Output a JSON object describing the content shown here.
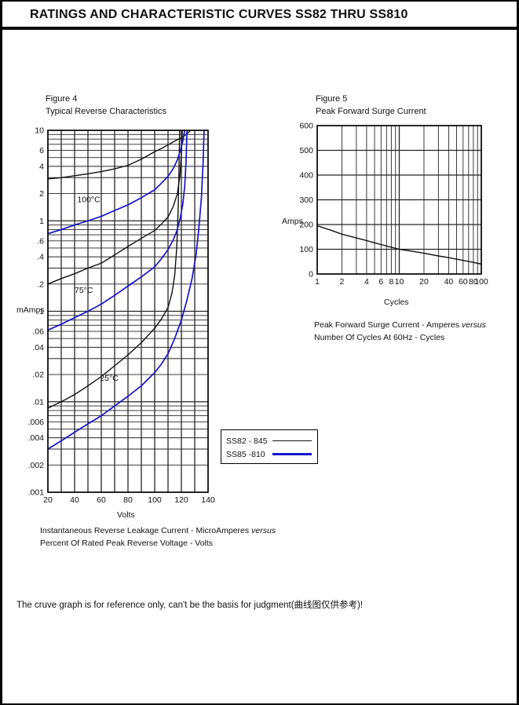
{
  "page": {
    "title": "RATINGS AND CHARACTERISTIC CURVES SS82 THRU SS810",
    "note": "The cruve graph is for reference only, can't be the basis for judgment(曲线图仅供参考)!"
  },
  "colors": {
    "series_black": "#111111",
    "series_blue": "#1414cc",
    "grid": "#262626",
    "frame": "#000000"
  },
  "figure4": {
    "label": "Figure 4",
    "title": "Typical Reverse Characteristics",
    "y_unit": "mAmps",
    "x_unit": "Volts",
    "caption1": "Instantaneous Reverse Leakage Current  - MicroAmperes",
    "caption1_italic": "versus",
    "caption2": "Percent Of Rated Peak Reverse Voltage - Volts",
    "legend": [
      {
        "label": "SS82 - 845",
        "color": "#111111"
      },
      {
        "label": "SS85 -810",
        "color": "#1414cc"
      }
    ]
  },
  "figure5": {
    "label": "Figure 5",
    "title": "Peak Forward Surge Current",
    "y_unit": "Amps",
    "x_unit": "Cycles",
    "caption1": "Peak Forward Surge Current - Amperes",
    "caption1_italic": "versus",
    "caption2": "Number Of Cycles At 60Hz - Cycles"
  },
  "chart_data": [
    {
      "figure": "Figure 4",
      "type": "line",
      "title": "Typical Reverse Characteristics",
      "xlabel": "Volts",
      "ylabel": "mAmps",
      "x_scale": "linear",
      "y_scale": "log",
      "xlim": [
        20,
        140
      ],
      "ylim": [
        0.001,
        10
      ],
      "x_grid_step": 10,
      "grid": true,
      "legend_position": "below-right",
      "x_ticks": [
        {
          "v": 20,
          "label": "20"
        },
        {
          "v": 40,
          "label": "40"
        },
        {
          "v": 60,
          "label": "60"
        },
        {
          "v": 80,
          "label": "80"
        },
        {
          "v": 100,
          "label": "100"
        },
        {
          "v": 120,
          "label": "120"
        },
        {
          "v": 140,
          "label": "140"
        }
      ],
      "y_ticks": [
        {
          "v": 10,
          "label": "10"
        },
        {
          "v": 6,
          "label": "6"
        },
        {
          "v": 4,
          "label": "4"
        },
        {
          "v": 2,
          "label": "2"
        },
        {
          "v": 1,
          "label": "1"
        },
        {
          "v": 0.6,
          "label": ".6"
        },
        {
          "v": 0.4,
          "label": ".4"
        },
        {
          "v": 0.2,
          "label": ".2"
        },
        {
          "v": 0.1,
          "label": ".1"
        },
        {
          "v": 0.06,
          "label": ".06"
        },
        {
          "v": 0.04,
          "label": ".04"
        },
        {
          "v": 0.02,
          "label": ".02"
        },
        {
          "v": 0.01,
          "label": ".01"
        },
        {
          "v": 0.006,
          "label": ".006"
        },
        {
          "v": 0.004,
          "label": ".004"
        },
        {
          "v": 0.002,
          "label": ".002"
        },
        {
          "v": 0.001,
          "label": ".001"
        }
      ],
      "annotations": [
        {
          "text": "100°C",
          "x": 42,
          "y": 1.6
        },
        {
          "text": "75°C",
          "x": 40,
          "y": 0.16
        },
        {
          "text": "25°C",
          "x": 59,
          "y": 0.017
        }
      ],
      "series": [
        {
          "name": "SS82 - 845 @ 100°C",
          "color": "#111111",
          "points": [
            [
              20,
              2.9
            ],
            [
              30,
              3.0
            ],
            [
              40,
              3.15
            ],
            [
              50,
              3.3
            ],
            [
              60,
              3.5
            ],
            [
              70,
              3.75
            ],
            [
              80,
              4.1
            ],
            [
              90,
              4.8
            ],
            [
              100,
              5.8
            ],
            [
              105,
              6.3
            ],
            [
              110,
              6.9
            ],
            [
              115,
              7.6
            ],
            [
              120,
              8.3
            ],
            [
              124,
              9.1
            ],
            [
              127,
              10
            ]
          ]
        },
        {
          "name": "SS82 - 845 @ 75°C",
          "color": "#111111",
          "points": [
            [
              20,
              0.2
            ],
            [
              30,
              0.23
            ],
            [
              40,
              0.26
            ],
            [
              50,
              0.3
            ],
            [
              60,
              0.34
            ],
            [
              70,
              0.42
            ],
            [
              80,
              0.52
            ],
            [
              90,
              0.64
            ],
            [
              100,
              0.78
            ],
            [
              105,
              0.92
            ],
            [
              110,
              1.1
            ],
            [
              114,
              1.45
            ],
            [
              117,
              2.0
            ],
            [
              119,
              3.2
            ],
            [
              120,
              5.5
            ],
            [
              120.7,
              10
            ]
          ]
        },
        {
          "name": "SS82 - 845 @ 25°C",
          "color": "#111111",
          "points": [
            [
              20,
              0.0085
            ],
            [
              30,
              0.01
            ],
            [
              40,
              0.012
            ],
            [
              50,
              0.015
            ],
            [
              60,
              0.019
            ],
            [
              70,
              0.025
            ],
            [
              80,
              0.033
            ],
            [
              90,
              0.045
            ],
            [
              100,
              0.065
            ],
            [
              105,
              0.082
            ],
            [
              110,
              0.11
            ],
            [
              113,
              0.16
            ],
            [
              115,
              0.25
            ],
            [
              116.5,
              0.5
            ],
            [
              117.5,
              1.2
            ],
            [
              118.2,
              3.5
            ],
            [
              118.7,
              10
            ]
          ]
        },
        {
          "name": "SS85 -810 @ 100°C",
          "color": "#1414cc",
          "points": [
            [
              20,
              0.72
            ],
            [
              30,
              0.8
            ],
            [
              40,
              0.9
            ],
            [
              50,
              1.0
            ],
            [
              60,
              1.12
            ],
            [
              70,
              1.3
            ],
            [
              80,
              1.5
            ],
            [
              90,
              1.8
            ],
            [
              100,
              2.2
            ],
            [
              105,
              2.6
            ],
            [
              110,
              3.1
            ],
            [
              114,
              3.8
            ],
            [
              117,
              4.7
            ],
            [
              119,
              5.8
            ],
            [
              121,
              7.5
            ],
            [
              122.5,
              10
            ]
          ]
        },
        {
          "name": "SS85 -810 @ 75°C",
          "color": "#1414cc",
          "points": [
            [
              20,
              0.062
            ],
            [
              30,
              0.072
            ],
            [
              40,
              0.085
            ],
            [
              50,
              0.1
            ],
            [
              60,
              0.12
            ],
            [
              70,
              0.15
            ],
            [
              80,
              0.19
            ],
            [
              90,
              0.24
            ],
            [
              100,
              0.31
            ],
            [
              105,
              0.38
            ],
            [
              110,
              0.48
            ],
            [
              114,
              0.62
            ],
            [
              117,
              0.8
            ],
            [
              119,
              1.05
            ],
            [
              121,
              1.5
            ],
            [
              122.5,
              2.4
            ],
            [
              123.5,
              4.5
            ],
            [
              124.2,
              10
            ]
          ]
        },
        {
          "name": "SS85 -810 @ 25°C",
          "color": "#1414cc",
          "points": [
            [
              20,
              0.003
            ],
            [
              30,
              0.0037
            ],
            [
              40,
              0.0046
            ],
            [
              50,
              0.0057
            ],
            [
              60,
              0.007
            ],
            [
              70,
              0.009
            ],
            [
              80,
              0.0115
            ],
            [
              90,
              0.015
            ],
            [
              100,
              0.021
            ],
            [
              105,
              0.026
            ],
            [
              110,
              0.034
            ],
            [
              115,
              0.05
            ],
            [
              120,
              0.08
            ],
            [
              124,
              0.13
            ],
            [
              128,
              0.23
            ],
            [
              131,
              0.42
            ],
            [
              133,
              0.8
            ],
            [
              135,
              1.8
            ],
            [
              136.3,
              4.5
            ],
            [
              137,
              10
            ]
          ]
        }
      ]
    },
    {
      "figure": "Figure 5",
      "type": "line",
      "title": "Peak Forward Surge Current",
      "xlabel": "Cycles",
      "ylabel": "Amps",
      "x_scale": "log",
      "y_scale": "linear",
      "xlim": [
        1,
        100
      ],
      "ylim": [
        0,
        600
      ],
      "y_grid_step": 100,
      "grid": true,
      "x_ticks": [
        {
          "v": 1,
          "label": "1"
        },
        {
          "v": 2,
          "label": "2"
        },
        {
          "v": 4,
          "label": "4"
        },
        {
          "v": 6,
          "label": "6"
        },
        {
          "v": 8,
          "label": "8"
        },
        {
          "v": 10,
          "label": "10"
        },
        {
          "v": 20,
          "label": "20"
        },
        {
          "v": 40,
          "label": "40"
        },
        {
          "v": 60,
          "label": "60"
        },
        {
          "v": 80,
          "label": "80"
        },
        {
          "v": 100,
          "label": "100"
        }
      ],
      "y_ticks": [
        {
          "v": 600,
          "label": "600"
        },
        {
          "v": 500,
          "label": "500"
        },
        {
          "v": 400,
          "label": "400"
        },
        {
          "v": 300,
          "label": "300"
        },
        {
          "v": 200,
          "label": "200"
        },
        {
          "v": 100,
          "label": "100"
        },
        {
          "v": 0,
          "label": "0"
        }
      ],
      "annotations": [],
      "series": [
        {
          "name": "Peak Forward Surge Current",
          "color": "#111111",
          "points": [
            [
              1,
              195
            ],
            [
              1.5,
              176
            ],
            [
              2,
              161
            ],
            [
              3,
              146
            ],
            [
              4,
              135
            ],
            [
              5,
              126
            ],
            [
              6,
              119
            ],
            [
              8,
              108
            ],
            [
              10,
              100
            ],
            [
              15,
              91
            ],
            [
              20,
              84
            ],
            [
              30,
              73
            ],
            [
              40,
              66
            ],
            [
              60,
              55
            ],
            [
              80,
              47
            ],
            [
              100,
              40
            ]
          ]
        }
      ]
    }
  ]
}
